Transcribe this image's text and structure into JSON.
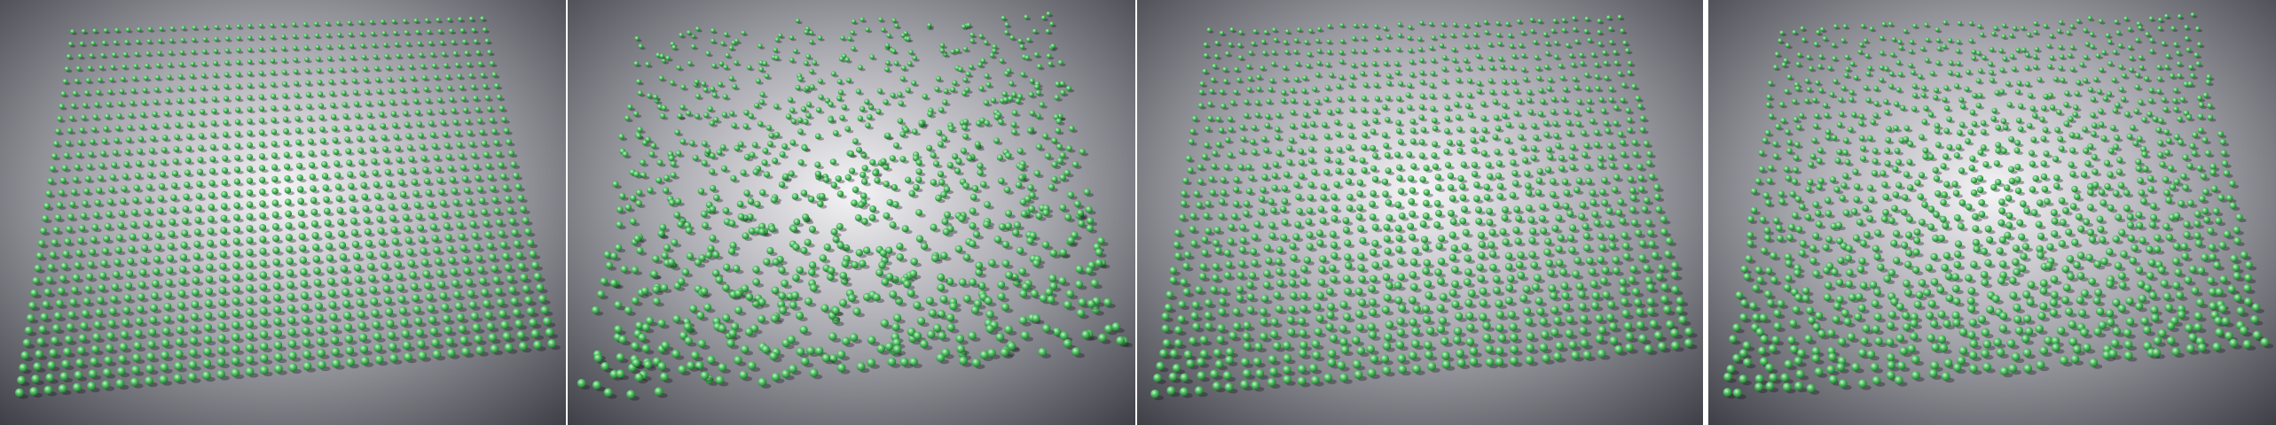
{
  "figure": {
    "panels": [
      {
        "id": "panel-1",
        "arrangement": "regular-grid"
      },
      {
        "id": "panel-2",
        "arrangement": "random-scatter"
      },
      {
        "id": "panel-3",
        "arrangement": "lightly-perturbed-grid"
      },
      {
        "id": "panel-4",
        "arrangement": "moderately-perturbed-grid"
      }
    ],
    "colors": {
      "sphere": "#4fbf62",
      "sphere_highlight": "#c9f5cf",
      "sphere_shadow": "#1f6a2c",
      "floor_light": "#f4f4f6",
      "floor_mid": "#a9a9b0",
      "floor_dark": "#505058",
      "background_dark": "#3d3d45",
      "divider": "#ffffff"
    }
  }
}
